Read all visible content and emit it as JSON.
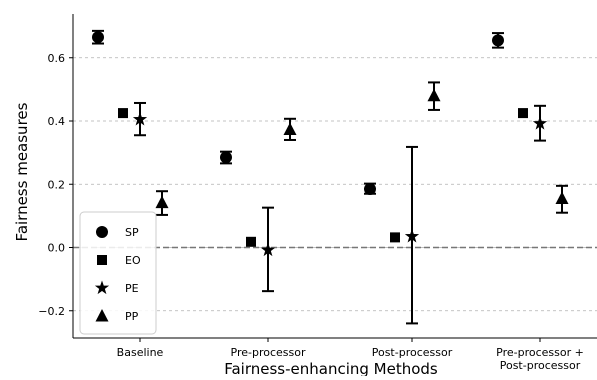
{
  "chart_data": {
    "type": "scatter",
    "xlabel": "Fairness-enhancing Methods",
    "ylabel": "Fairness measures",
    "categories": [
      "Baseline",
      "Pre-processor",
      "Post-processor",
      "Pre-processor +\nPost-processor"
    ],
    "ylim": [
      -0.25,
      0.73
    ],
    "yticks": [
      -0.2,
      0.0,
      0.2,
      0.4,
      0.6
    ],
    "ytick_labels": [
      "−0.2",
      "0.0",
      "0.2",
      "0.4",
      "0.6"
    ],
    "grid": "horizontal dashed",
    "reference_line": 0.0,
    "legend_position": "lower-left",
    "series": [
      {
        "name": "SP",
        "marker": "circle",
        "values": [
          0.665,
          0.285,
          0.185,
          0.655
        ],
        "err_low": [
          0.645,
          0.266,
          0.17,
          0.632
        ],
        "err_high": [
          0.685,
          0.303,
          0.202,
          0.678
        ]
      },
      {
        "name": "EO",
        "marker": "square",
        "values": [
          0.425,
          0.018,
          0.032,
          0.425
        ],
        "err_low": [
          null,
          null,
          null,
          null
        ],
        "err_high": [
          null,
          null,
          null,
          null
        ]
      },
      {
        "name": "PE",
        "marker": "star",
        "values": [
          0.405,
          -0.008,
          0.035,
          0.392
        ],
        "err_low": [
          0.355,
          -0.138,
          -0.24,
          0.338
        ],
        "err_high": [
          0.457,
          0.126,
          0.318,
          0.448
        ]
      },
      {
        "name": "PP",
        "marker": "triangle",
        "values": [
          0.142,
          0.373,
          0.48,
          0.155
        ],
        "err_low": [
          0.103,
          0.34,
          0.435,
          0.11
        ],
        "err_high": [
          0.178,
          0.407,
          0.522,
          0.195
        ]
      }
    ]
  }
}
